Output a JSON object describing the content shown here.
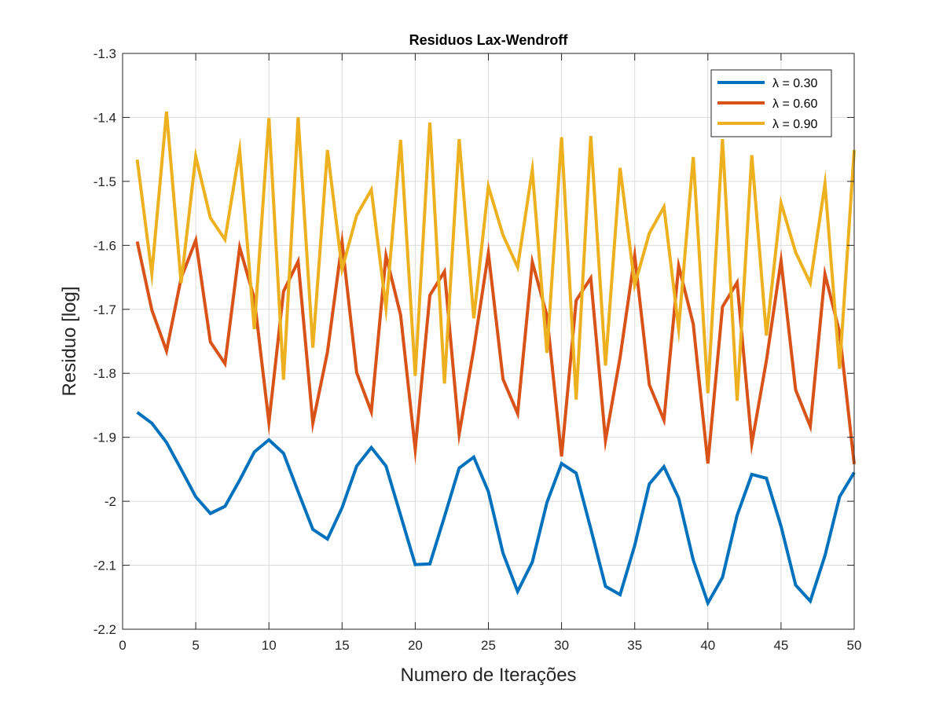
{
  "chart_data": {
    "type": "line",
    "title": "Residuos Lax-Wendroff",
    "xlabel": "Numero de Iterações",
    "ylabel": "Residuo [log]",
    "xlim": [
      0,
      50
    ],
    "ylim": [
      -2.2,
      -1.3
    ],
    "xticks": [
      0,
      5,
      10,
      15,
      20,
      25,
      30,
      35,
      40,
      45,
      50
    ],
    "yticks": [
      -2.2,
      -2.1,
      -2,
      -1.9,
      -1.8,
      -1.7,
      -1.6,
      -1.5,
      -1.4,
      -1.3
    ],
    "ytick_labels": [
      "-2.2",
      "-2.1",
      "-2",
      "-1.9",
      "-1.8",
      "-1.7",
      "-1.6",
      "-1.5",
      "-1.4",
      "-1.3"
    ],
    "grid": true,
    "legend_position": "top-right",
    "x": [
      1,
      2,
      3,
      4,
      5,
      6,
      7,
      8,
      9,
      10,
      11,
      12,
      13,
      14,
      15,
      16,
      17,
      18,
      19,
      20,
      21,
      22,
      23,
      24,
      25,
      26,
      27,
      28,
      29,
      30,
      31,
      32,
      33,
      34,
      35,
      36,
      37,
      38,
      39,
      40,
      41,
      42,
      43,
      44,
      45,
      46,
      47,
      48,
      49,
      50
    ],
    "series": [
      {
        "name": "λ = 0.30",
        "color": "#0072BD",
        "values": [
          -1.861,
          -1.878,
          -1.908,
          -1.95,
          -1.993,
          -2.019,
          -2.008,
          -1.967,
          -1.923,
          -1.904,
          -1.925,
          -1.985,
          -2.044,
          -2.059,
          -2.01,
          -1.945,
          -1.916,
          -1.945,
          -2.022,
          -2.099,
          -2.098,
          -2.024,
          -1.948,
          -1.931,
          -1.985,
          -2.081,
          -2.141,
          -2.095,
          -2.002,
          -1.941,
          -1.956,
          -2.043,
          -2.133,
          -2.146,
          -2.069,
          -1.973,
          -1.946,
          -1.995,
          -2.092,
          -2.159,
          -2.119,
          -2.022,
          -1.958,
          -1.964,
          -2.039,
          -2.131,
          -2.156,
          -2.085,
          -1.993,
          -1.955
        ]
      },
      {
        "name": "λ = 0.60",
        "color": "#D95319",
        "values": [
          -1.594,
          -1.701,
          -1.765,
          -1.651,
          -1.592,
          -1.751,
          -1.785,
          -1.603,
          -1.683,
          -1.877,
          -1.672,
          -1.625,
          -1.878,
          -1.767,
          -1.595,
          -1.799,
          -1.86,
          -1.616,
          -1.709,
          -1.919,
          -1.678,
          -1.641,
          -1.895,
          -1.762,
          -1.612,
          -1.809,
          -1.863,
          -1.626,
          -1.71,
          -1.93,
          -1.686,
          -1.651,
          -1.905,
          -1.775,
          -1.616,
          -1.818,
          -1.873,
          -1.632,
          -1.723,
          -1.941,
          -1.696,
          -1.658,
          -1.91,
          -1.78,
          -1.624,
          -1.826,
          -1.883,
          -1.645,
          -1.736,
          -1.942
        ]
      },
      {
        "name": "λ = 0.90",
        "color": "#EDB120",
        "values": [
          -1.466,
          -1.644,
          -1.391,
          -1.659,
          -1.461,
          -1.557,
          -1.591,
          -1.451,
          -1.731,
          -1.401,
          -1.81,
          -1.4,
          -1.76,
          -1.451,
          -1.637,
          -1.553,
          -1.513,
          -1.698,
          -1.435,
          -1.804,
          -1.408,
          -1.816,
          -1.434,
          -1.714,
          -1.508,
          -1.584,
          -1.634,
          -1.482,
          -1.768,
          -1.431,
          -1.841,
          -1.429,
          -1.788,
          -1.479,
          -1.662,
          -1.581,
          -1.54,
          -1.73,
          -1.462,
          -1.831,
          -1.434,
          -1.843,
          -1.459,
          -1.741,
          -1.534,
          -1.611,
          -1.659,
          -1.504,
          -1.793,
          -1.451
        ]
      }
    ]
  }
}
